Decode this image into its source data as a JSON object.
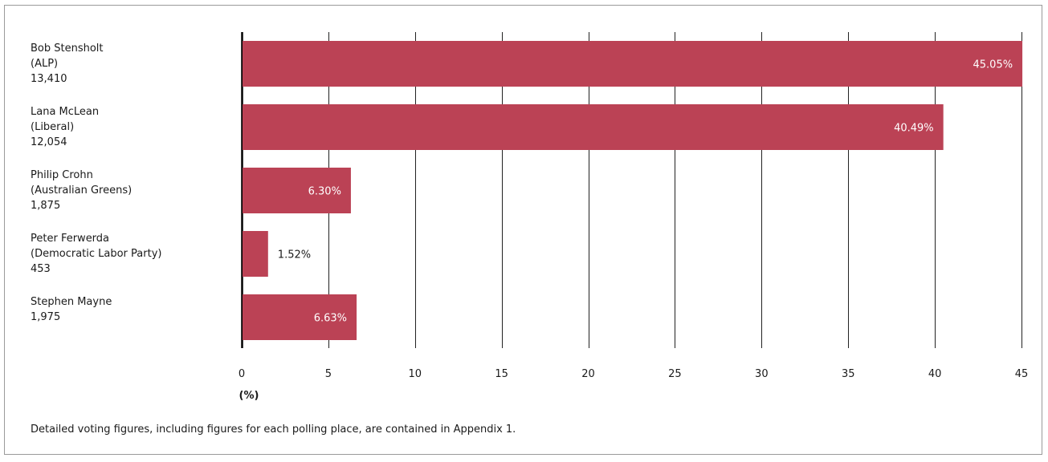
{
  "chart_data": {
    "type": "bar",
    "orientation": "horizontal",
    "categories": [
      {
        "name": "Bob Stensholt",
        "party": "(ALP)",
        "votes": "13,410"
      },
      {
        "name": "Lana McLean",
        "party": "(Liberal)",
        "votes": "12,054"
      },
      {
        "name": "Philip Crohn",
        "party": "(Australian Greens)",
        "votes": "1,875"
      },
      {
        "name": "Peter Ferwerda",
        "party": "(Democratic Labor Party)",
        "votes": "453"
      },
      {
        "name": "Stephen Mayne",
        "party": "",
        "votes": "1,975"
      }
    ],
    "values": [
      45.05,
      40.49,
      6.3,
      1.52,
      6.63
    ],
    "value_labels": [
      "45.05%",
      "40.49%",
      "6.30%",
      "1.52%",
      "6.63%"
    ],
    "xlim": [
      0,
      45
    ],
    "xticks": [
      "0",
      "5",
      "10",
      "15",
      "20",
      "25",
      "30",
      "35",
      "40",
      "45"
    ],
    "xlabel": "(%)",
    "grid": "vertical",
    "bar_color": "#bb4255"
  },
  "footnote": "Detailed voting figures, including figures for each polling place, are contained in Appendix 1."
}
